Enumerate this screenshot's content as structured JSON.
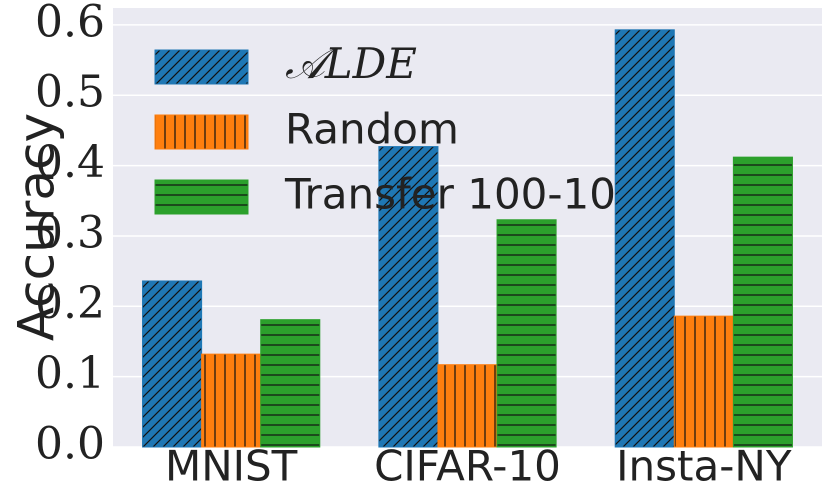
{
  "chart_data": {
    "type": "bar",
    "y_label": "Accuracy",
    "categories": [
      "MNIST",
      "CIFAR-10",
      "Insta-NY"
    ],
    "series": [
      {
        "name": "𝒜LDE",
        "color": "#1f77b4",
        "hatch": "//",
        "values": [
          0.236,
          0.427,
          0.593
        ]
      },
      {
        "name": "Random",
        "color": "#ff7f0e",
        "hatch": "||",
        "values": [
          0.132,
          0.117,
          0.186
        ]
      },
      {
        "name": "Transfer 100-10",
        "color": "#2ca02c",
        "hatch": "--",
        "values": [
          0.181,
          0.323,
          0.412
        ]
      }
    ],
    "ylim": [
      0,
      0.624
    ],
    "yticks": [
      {
        "value": 0,
        "label": "0.0"
      },
      0.1,
      0.2,
      0.3,
      0.4,
      0.5,
      0.6
    ],
    "grid": true,
    "legend": "upper left"
  }
}
